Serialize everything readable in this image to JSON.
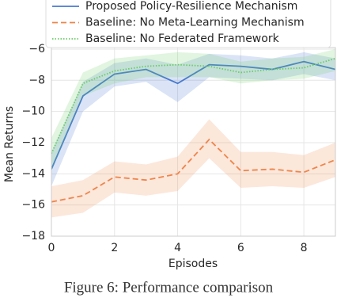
{
  "chart_data": {
    "type": "line",
    "xlabel": "Episodes",
    "ylabel": "Mean Returns",
    "caption": "Figure 6: Performance comparison",
    "x": [
      0,
      1,
      2,
      3,
      4,
      5,
      6,
      7,
      8,
      9
    ],
    "xlim": [
      0,
      9
    ],
    "xticks": [
      0,
      2,
      4,
      6,
      8
    ],
    "ylim": [
      -18,
      -5.9
    ],
    "yticks": [
      {
        "value": -18,
        "label": "−18"
      },
      {
        "value": -16,
        "label": "−16"
      },
      {
        "value": -14,
        "label": "−14"
      },
      {
        "value": -12,
        "label": "−12"
      },
      {
        "value": -10,
        "label": "−10"
      },
      {
        "value": -8,
        "label": "−8"
      },
      {
        "value": -6,
        "label": "−6"
      }
    ],
    "grid": true,
    "series": [
      {
        "name": "Proposed Policy-Resilience Mechanism",
        "color": "#4878d0",
        "linestyle": "solid",
        "values": [
          -13.7,
          -9.0,
          -7.6,
          -7.3,
          -8.2,
          -7.0,
          -7.1,
          -7.3,
          -6.8,
          -7.3
        ],
        "lower": [
          -14.8,
          -10.0,
          -8.4,
          -8.1,
          -9.4,
          -7.8,
          -7.9,
          -8.0,
          -7.6,
          -8.0
        ],
        "upper": [
          -12.6,
          -8.1,
          -6.9,
          -6.6,
          -7.0,
          -6.3,
          -6.4,
          -6.6,
          -6.2,
          -6.6
        ]
      },
      {
        "name": "Baseline: No Meta-Learning Mechanism",
        "color": "#ee854a",
        "linestyle": "dashed",
        "values": [
          -15.8,
          -15.4,
          -14.2,
          -14.4,
          -14.0,
          -11.8,
          -13.8,
          -13.7,
          -13.9,
          -13.1
        ],
        "lower": [
          -16.8,
          -16.5,
          -15.2,
          -15.4,
          -15.1,
          -13.0,
          -14.9,
          -14.8,
          -14.9,
          -14.2
        ],
        "upper": [
          -14.8,
          -14.4,
          -13.2,
          -13.4,
          -12.9,
          -10.5,
          -12.6,
          -12.6,
          -12.8,
          -12.0
        ]
      },
      {
        "name": "Baseline: No Federated Framework",
        "color": "#6acc64",
        "linestyle": "dotted",
        "values": [
          -12.7,
          -8.2,
          -7.4,
          -7.1,
          -7.0,
          -7.1,
          -7.5,
          -7.3,
          -7.2,
          -6.6
        ],
        "lower": [
          -13.8,
          -9.0,
          -8.2,
          -7.8,
          -7.8,
          -7.8,
          -8.2,
          -8.0,
          -7.9,
          -7.4
        ],
        "upper": [
          -11.7,
          -7.5,
          -6.6,
          -6.4,
          -6.2,
          -6.3,
          -6.8,
          -6.6,
          -6.5,
          -6.0
        ]
      }
    ]
  }
}
